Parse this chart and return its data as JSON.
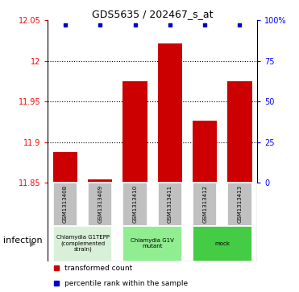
{
  "title": "GDS5635 / 202467_s_at",
  "samples": [
    "GSM1313408",
    "GSM1313409",
    "GSM1313410",
    "GSM1313411",
    "GSM1313412",
    "GSM1313413"
  ],
  "bar_values": [
    11.888,
    11.854,
    11.975,
    12.022,
    11.926,
    11.975
  ],
  "bar_color": "#cc0000",
  "dot_color": "#0000cc",
  "ylim_left": [
    11.85,
    12.05
  ],
  "ylim_right": [
    0,
    100
  ],
  "yticks_left": [
    11.85,
    11.9,
    11.95,
    12.0,
    12.05
  ],
  "yticks_right": [
    0,
    25,
    50,
    75,
    100
  ],
  "ytick_labels_left": [
    "11.85",
    "11.9",
    "11.95",
    "12",
    "12.05"
  ],
  "ytick_labels_right": [
    "0",
    "25",
    "50",
    "75",
    "100%"
  ],
  "dotted_lines": [
    11.9,
    11.95,
    12.0
  ],
  "groups": [
    {
      "label": "Chlamydia G1TEPP\n(complemented\nstrain)",
      "indices": [
        0,
        1
      ],
      "color": "#d8f0d8"
    },
    {
      "label": "Chlamydia G1V\nmutant",
      "indices": [
        2,
        3
      ],
      "color": "#90ee90"
    },
    {
      "label": "mock",
      "indices": [
        4,
        5
      ],
      "color": "#44cc44"
    }
  ],
  "group_factor": "infection",
  "legend_items": [
    {
      "label": "transformed count",
      "color": "#cc0000"
    },
    {
      "label": "percentile rank within the sample",
      "color": "#0000cc"
    }
  ],
  "bar_width": 0.7,
  "bar_baseline": 11.85,
  "sample_box_color": "#c0c0c0",
  "x_positions": [
    0,
    1,
    2,
    3,
    4,
    5
  ]
}
